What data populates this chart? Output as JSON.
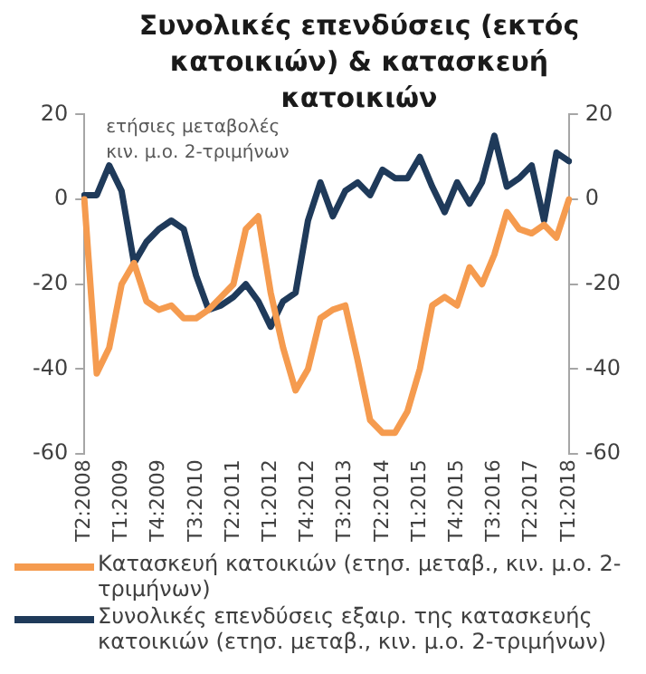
{
  "chart_data": {
    "type": "line",
    "title": "Συνολικές επενδύσεις (εκτός κατοικιών) & κατασκευή κατοικιών",
    "categories": [
      "T2:2008",
      null,
      null,
      "T1:2009",
      null,
      null,
      "T4:2009",
      null,
      null,
      "T3:2010",
      null,
      null,
      "T2:2011",
      null,
      null,
      "T1:2012",
      null,
      null,
      "T4:2012",
      null,
      null,
      "T3:2013",
      null,
      null,
      "T2:2014",
      null,
      null,
      "T1:2015",
      null,
      null,
      "T4:2015",
      null,
      null,
      "T3:2016",
      null,
      null,
      "T2:2017",
      null,
      null,
      "T1:2018"
    ],
    "series": [
      {
        "name": "Κατασκευή κατοικιών (ετησ. μεταβ., κιν. μ.ο. 2-τριμήνων)",
        "color": "#f59b4f",
        "values": [
          0,
          -41,
          -35,
          -20,
          -15,
          -24,
          -26,
          -25,
          -28,
          -28,
          -26,
          -23,
          -20,
          -7,
          -4,
          -22,
          -35,
          -45,
          -40,
          -28,
          -26,
          -25,
          -38,
          -52,
          -55,
          -55,
          -50,
          -40,
          -25,
          -23,
          -25,
          -16,
          -20,
          -13,
          -3,
          -7,
          -8,
          -6,
          -9,
          0
        ]
      },
      {
        "name": "Συνολικές επενδύσεις εξαιρ. της κατασκευής κατοικιών (ετησ. μεταβ., κιν. μ.ο. 2-τριμήνων)",
        "color": "#1f3a5a",
        "values": [
          1,
          1,
          8,
          2,
          -15,
          -10,
          -7,
          -5,
          -7,
          -18,
          -26,
          -25,
          -23,
          -20,
          -24,
          -30,
          -24,
          -22,
          -5,
          4,
          -4,
          2,
          4,
          1,
          7,
          5,
          5,
          10,
          3,
          -3,
          4,
          -1,
          4,
          15,
          3,
          5,
          8,
          -5,
          11,
          9
        ]
      }
    ],
    "ylim": [
      -60,
      20
    ],
    "yticks": [
      -60,
      -40,
      -20,
      0,
      20
    ],
    "y2lim": [
      -60,
      20
    ],
    "y2ticks": [
      -60,
      -40,
      -20,
      0,
      20
    ],
    "annotations": [
      "ετήσιες μεταβολές",
      "κιν. μ.ο. 2-τριμήνων"
    ],
    "grid": false,
    "legend": "bottom",
    "marker": "none",
    "line_style": "solid"
  }
}
